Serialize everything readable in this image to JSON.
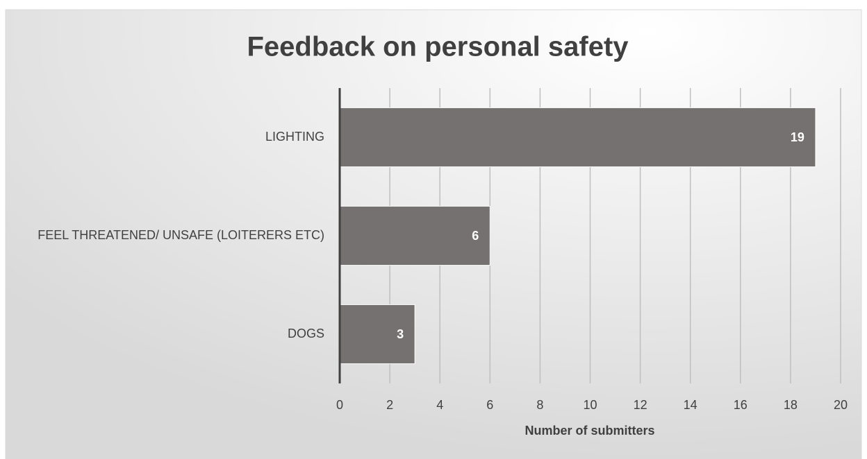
{
  "chart_data": {
    "type": "bar",
    "orientation": "horizontal",
    "title": "Feedback on personal safety",
    "categories": [
      "LIGHTING",
      "FEEL THREATENED/ UNSAFE (LOITERERS ETC)",
      "DOGS"
    ],
    "values": [
      19,
      6,
      3
    ],
    "color": "#767171",
    "xlabel": "Number of submitters",
    "xlim": [
      0,
      20
    ],
    "xticks": [
      0,
      2,
      4,
      6,
      8,
      10,
      12,
      14,
      16,
      18,
      20
    ],
    "grid": true
  }
}
